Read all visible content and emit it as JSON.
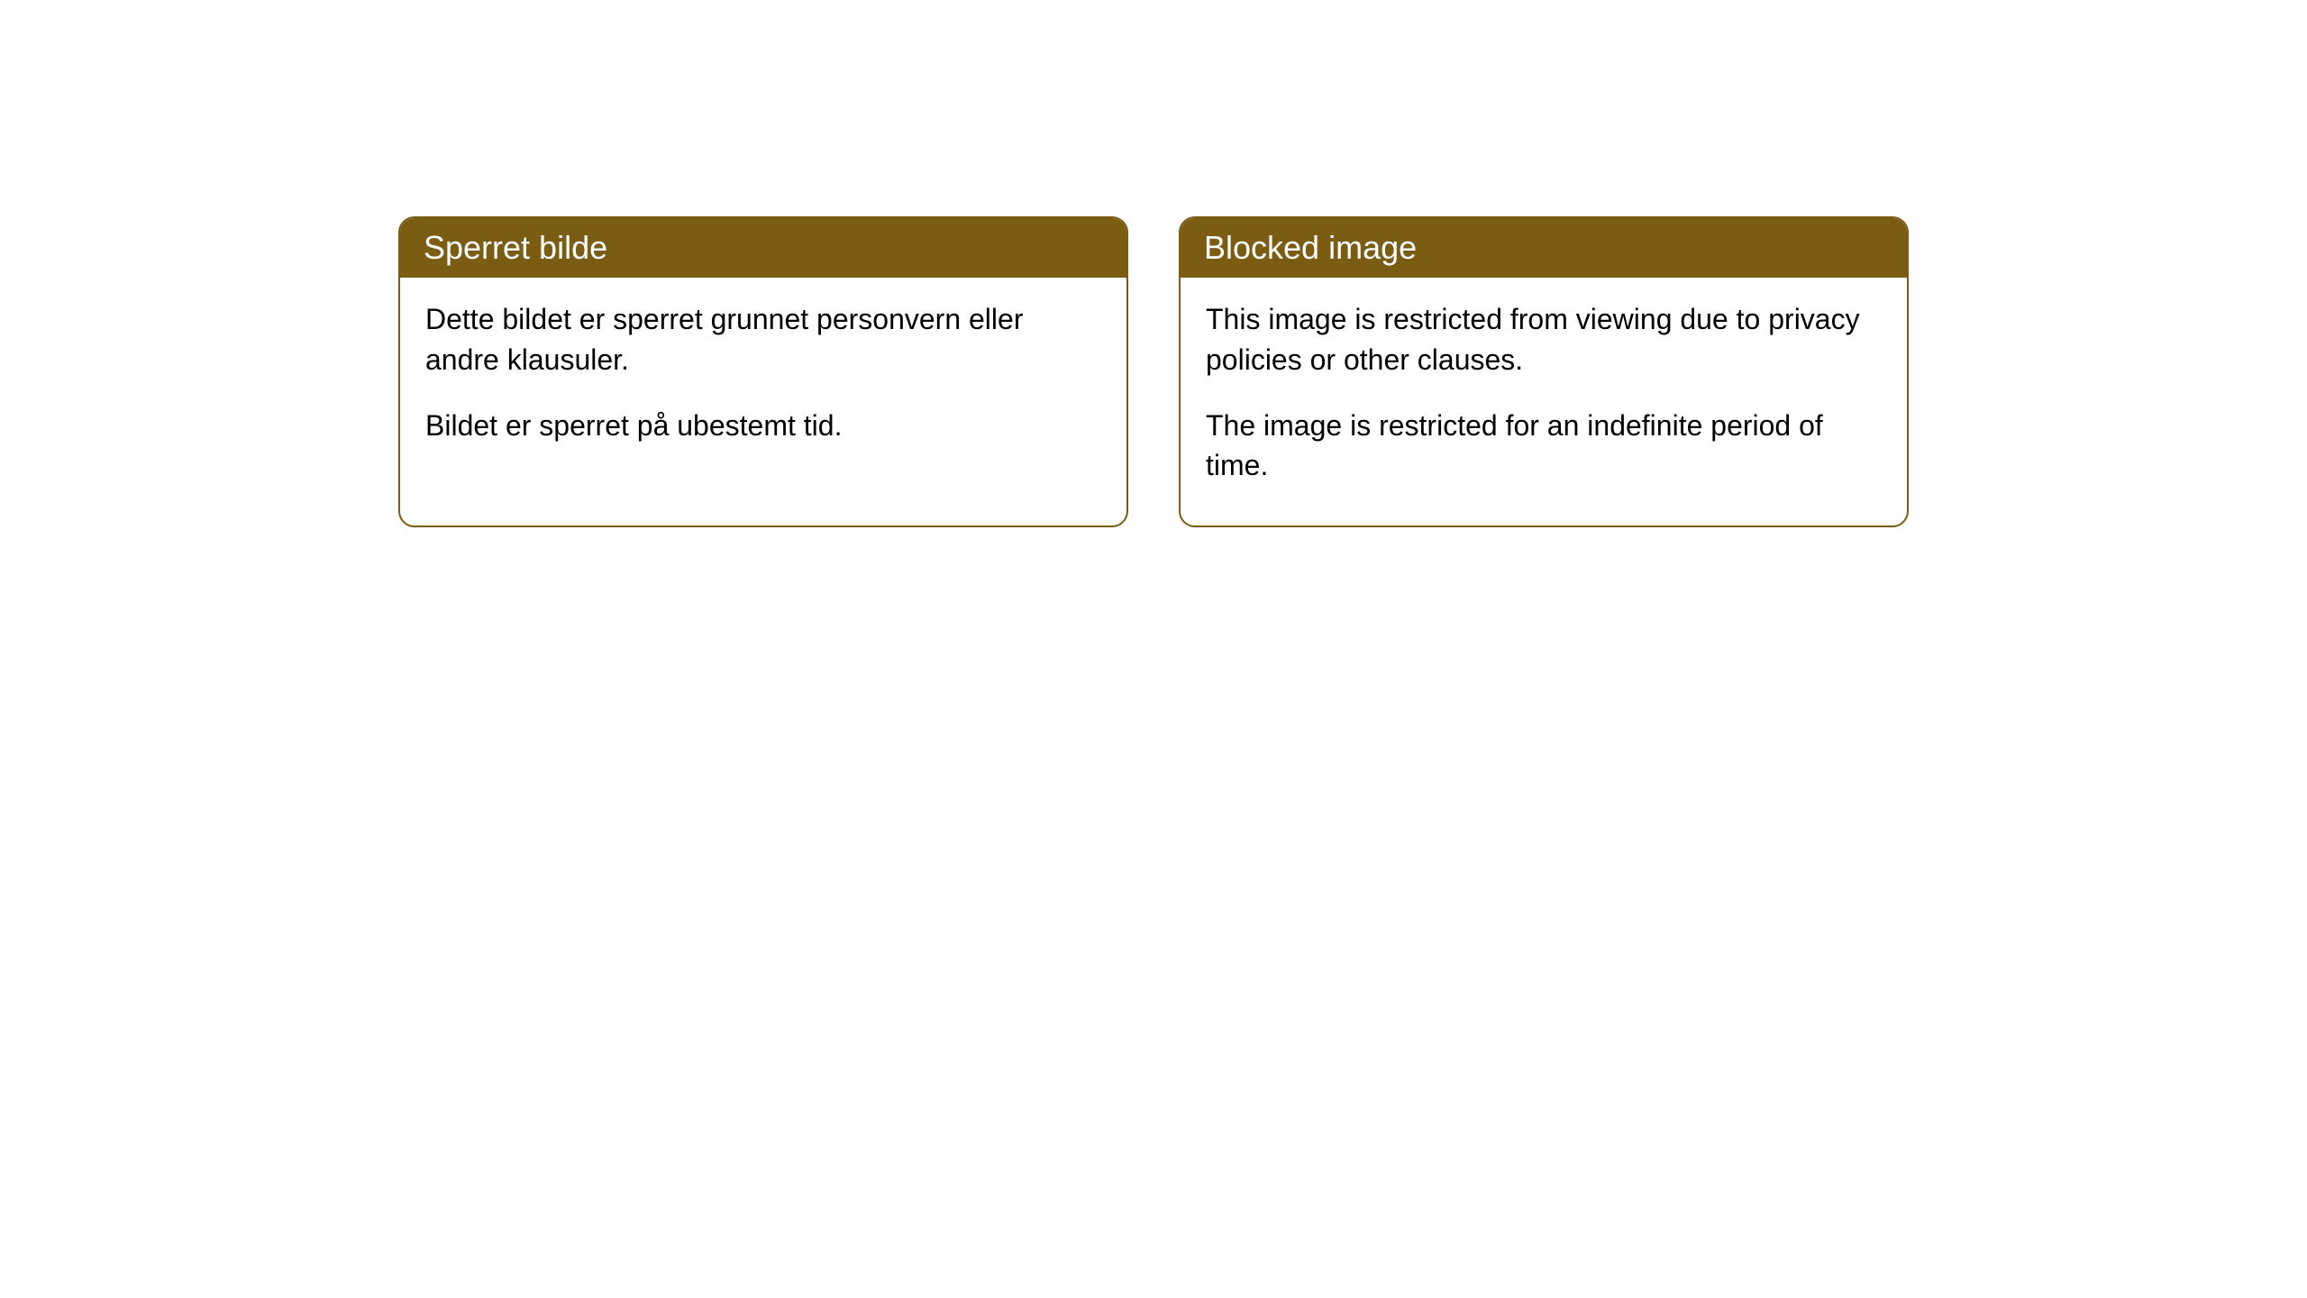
{
  "cards": {
    "left": {
      "title": "Sperret bilde",
      "paragraph1": "Dette bildet er sperret grunnet personvern eller andre klausuler.",
      "paragraph2": "Bildet er sperret på ubestemt tid."
    },
    "right": {
      "title": "Blocked image",
      "paragraph1": "This image is restricted from viewing due to privacy policies or other clauses.",
      "paragraph2": "The image is restricted for an indefinite period of time."
    }
  },
  "styling": {
    "header_bg_color": "#7a5d13",
    "header_text_color": "#ffffff",
    "border_color": "#7a5d13",
    "body_bg_color": "#ffffff",
    "body_text_color": "#000000",
    "border_radius": 18,
    "header_fontsize": 36,
    "body_fontsize": 32
  }
}
